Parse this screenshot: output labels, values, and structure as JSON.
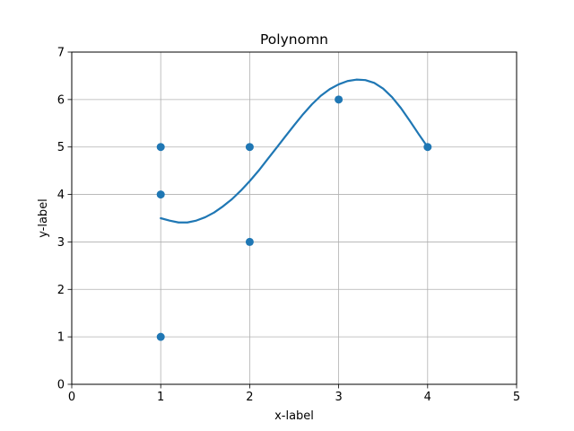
{
  "chart_data": {
    "type": "scatter",
    "title": "Polynomn",
    "xlabel": "x-label",
    "ylabel": "y-label",
    "xlim": [
      0,
      5
    ],
    "ylim": [
      0,
      7
    ],
    "xticks": [
      0,
      1,
      2,
      3,
      4,
      5
    ],
    "yticks": [
      0,
      1,
      2,
      3,
      4,
      5,
      6,
      7
    ],
    "grid": true,
    "series": [
      {
        "kind": "scatter",
        "x": [
          1,
          1,
          1,
          2,
          2,
          3,
          4
        ],
        "y": [
          1,
          4,
          5,
          3,
          5,
          6,
          5
        ],
        "color": "#1f77b4"
      },
      {
        "kind": "line",
        "x": [
          1.0,
          1.1,
          1.2,
          1.3,
          1.4,
          1.5,
          1.6,
          1.7,
          1.8,
          1.9,
          2.0,
          2.1,
          2.2,
          2.3,
          2.4,
          2.5,
          2.6,
          2.7,
          2.8,
          2.9,
          3.0,
          3.1,
          3.2,
          3.3,
          3.4,
          3.5,
          3.6,
          3.7,
          3.8,
          3.9,
          4.0
        ],
        "y": [
          3.5,
          3.45,
          3.41,
          3.41,
          3.45,
          3.52,
          3.62,
          3.75,
          3.9,
          4.08,
          4.28,
          4.5,
          4.74,
          4.98,
          5.22,
          5.46,
          5.69,
          5.9,
          6.08,
          6.22,
          6.32,
          6.39,
          6.42,
          6.41,
          6.35,
          6.23,
          6.05,
          5.82,
          5.55,
          5.27,
          5.0
        ],
        "color": "#1f77b4"
      }
    ]
  }
}
